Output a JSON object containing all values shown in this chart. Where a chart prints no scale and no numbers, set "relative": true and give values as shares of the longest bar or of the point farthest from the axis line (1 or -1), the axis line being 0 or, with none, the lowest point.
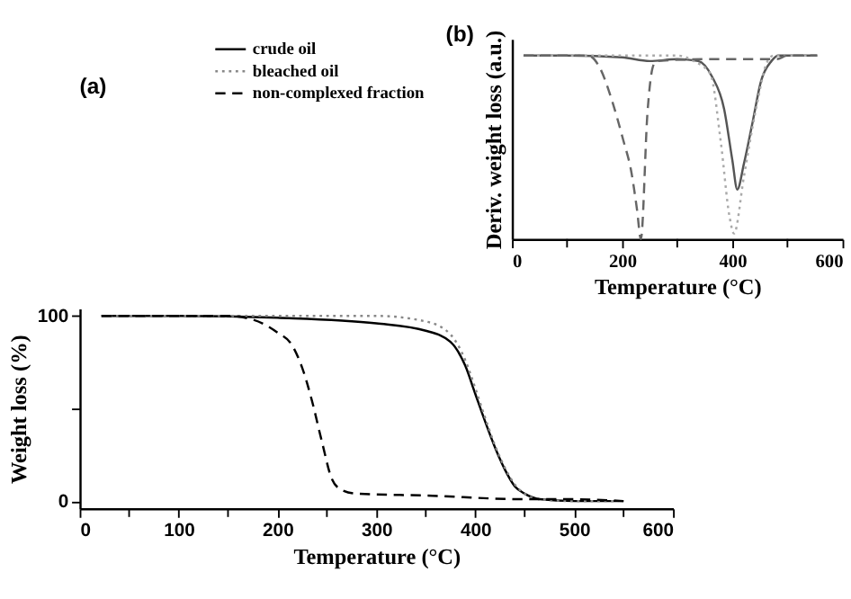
{
  "chart_data": [
    {
      "type": "line",
      "title": "(a)",
      "xlabel": "Temperature (°C)",
      "ylabel": "Weight loss (%)",
      "legend": "top left",
      "grid": false,
      "xlim": [
        0,
        600
      ],
      "xticks": [
        0,
        {
          "value": 50,
          "label": null
        },
        100,
        {
          "value": 150,
          "label": null
        },
        200,
        {
          "value": 250,
          "label": null
        },
        300,
        {
          "value": 350,
          "label": null
        },
        400,
        {
          "value": 450,
          "label": null
        },
        500,
        {
          "value": 550,
          "label": null
        },
        600
      ],
      "ylim": [
        -4,
        104
      ],
      "yticks": [
        0,
        {
          "value": 50,
          "label": null
        },
        100
      ],
      "series": [
        {
          "name": "crude oil",
          "color": "#000000",
          "line_style": "solid",
          "x": [
            22,
            100,
            200,
            300,
            350,
            375,
            390,
            400,
            410,
            420,
            430,
            440,
            450,
            465,
            500,
            550
          ],
          "values": [
            100,
            100,
            99,
            96,
            92,
            86,
            73,
            58,
            43,
            29,
            17,
            8,
            4,
            1,
            0,
            0
          ]
        },
        {
          "name": "bleached oil",
          "color": "#888888",
          "line_style": "dotted",
          "x": [
            30,
            100,
            200,
            300,
            350,
            375,
            390,
            400,
            410,
            420,
            430,
            440,
            450,
            465,
            500,
            545
          ],
          "values": [
            100,
            100,
            100,
            100,
            97,
            90,
            76,
            61,
            45,
            30,
            18,
            9,
            4,
            1,
            0,
            0
          ]
        },
        {
          "name": "non-complexed fraction",
          "color": "#000000",
          "line_style": "dashed",
          "x": [
            22,
            100,
            150,
            175,
            200,
            215,
            225,
            235,
            245,
            255,
            265,
            280,
            350,
            450,
            500,
            550
          ],
          "values": [
            100,
            100,
            100,
            98,
            91,
            84,
            72,
            54,
            32,
            12,
            6,
            4,
            3,
            1,
            1,
            0
          ]
        }
      ]
    },
    {
      "type": "line",
      "title": "(b)",
      "xlabel": "Temperature (°C)",
      "ylabel": "Deriv. weight loss (a.u.)",
      "relative": true,
      "tick_labels": "x",
      "grid": false,
      "xlim": [
        0,
        600
      ],
      "xticks": [
        0,
        {
          "value": 100,
          "label": null
        },
        200,
        {
          "value": 300,
          "label": null
        },
        400,
        {
          "value": 500,
          "label": null
        },
        600
      ],
      "series": [
        {
          "color": "#555555",
          "line_style": "solid",
          "x": [
            21,
            100,
            200,
            250,
            300,
            338,
            363,
            385,
            400,
            409,
            421,
            437,
            452,
            471,
            483,
            554
          ],
          "values": [
            1,
            1,
            0.99,
            0.97,
            0.98,
            0.97,
            0.886,
            0.71,
            0.43,
            0.27,
            0.41,
            0.64,
            0.86,
            0.97,
            1,
            1
          ]
        },
        {
          "color": "#aaaaaa",
          "line_style": "dotted",
          "x": [
            21,
            100,
            200,
            300,
            330,
            360,
            379,
            395,
            403,
            421,
            443,
            464,
            475,
            554
          ],
          "values": [
            1,
            1,
            1,
            1,
            0.97,
            0.9,
            0.53,
            0.12,
            0.03,
            0.34,
            0.71,
            0.97,
            1,
            1
          ]
        },
        {
          "color": "#666666",
          "line_style": "dashed",
          "x": [
            21,
            100,
            138,
            160,
            181,
            201,
            217,
            227,
            234,
            246,
            255,
            262,
            350,
            480,
            500,
            554
          ],
          "values": [
            1,
            1,
            1,
            0.93,
            0.76,
            0.55,
            0.36,
            0.16,
            0.0,
            0.69,
            0.93,
            0.97,
            0.98,
            0.98,
            1,
            1
          ]
        }
      ]
    }
  ]
}
